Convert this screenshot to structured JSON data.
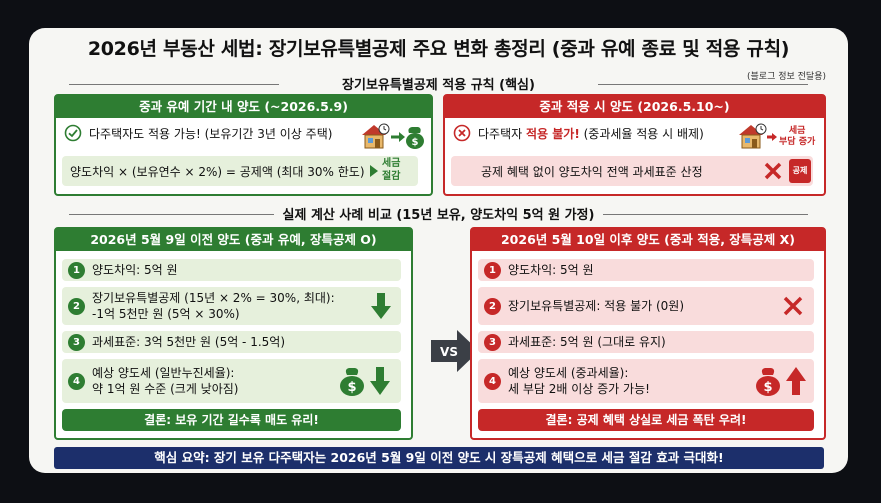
{
  "title": "2026년 부동산 세법: 장기보유특별공제 주요 변화 총정리 (중과 유예 종료 및 적용 규칙)",
  "blog_note": "(블로그 정보 전달용)",
  "section1_title": "장기보유특별공제 적용 규칙 (핵심)",
  "section2_title": "실제 계산 사례 비교 (15년 보유, 양도차익 5억 원 가정)",
  "left_rule": {
    "header": "중과 유예 기간 내 양도 (~2026.5.9)",
    "line1": "다주택자도 적용 가능! (보유기간 3년 이상 주택)",
    "line2": "양도차익 × (보유연수 × 2%) = 공제액 (최대 30% 한도)",
    "saving_label_1": "세금",
    "saving_label_2": "절감"
  },
  "right_rule": {
    "header": "중과 적용 시 양도 (2026.5.10~)",
    "line1_prefix": "다주택자 ",
    "line1_highlight": "적용 불가!",
    "line1_suffix": " (중과세율 적용 시 배제)",
    "line2": "공제 혜택 없이 양도차익 전액 과세표준 산정",
    "burden_label_1": "세금",
    "burden_label_2": "부담 증가",
    "stamp_label": "공제"
  },
  "left_case": {
    "header": "2026년 5월 9일 이전 양도 (중과 유예, 장특공제 O)",
    "items": [
      {
        "n": "1",
        "text": "양도차익: 5억 원"
      },
      {
        "n": "2",
        "text": "장기보유특별공제 (15년 × 2% = 30%, 최대):",
        "text2": "-1억 5천만 원 (5억 × 30%)"
      },
      {
        "n": "3",
        "text": "과세표준: 3억 5천만 원 (5억 - 1.5억)"
      },
      {
        "n": "4",
        "text": "예상 양도세 (일반누진세율):",
        "text2": "약 1억 원 수준 (크게 낮아짐)"
      }
    ],
    "conclusion": "결론: 보유 기간 길수록 매도 유리!"
  },
  "right_case": {
    "header": "2026년 5월 10일 이후 양도 (중과 적용, 장특공제 X)",
    "items": [
      {
        "n": "1",
        "text": "양도차익: 5억 원"
      },
      {
        "n": "2",
        "text": "장기보유특별공제: 적용 불가 (0원)"
      },
      {
        "n": "3",
        "text": "과세표준: 5억 원 (그대로 유지)"
      },
      {
        "n": "4",
        "text": "예상 양도세 (중과세율):",
        "text2": "세 부담 2배 이상 증가 가능!"
      }
    ],
    "conclusion": "결론: 공제 혜택 상실로 세금 폭탄 우려!"
  },
  "vs_label": "VS",
  "summary": "핵심 요약: 장기 보유 다주택자는 2026년 5월 9일 이전 양도 시 장특공제 혜택으로 세금 절감 효과 극대화!",
  "colors": {
    "green": "#2e7d32",
    "red": "#c62828",
    "navy": "#1c2f6b"
  },
  "icons": [
    "check-circle-icon",
    "house-icon",
    "money-bag-icon",
    "x-circle-icon",
    "x-mark-icon",
    "arrow-down-icon",
    "arrow-up-icon"
  ]
}
